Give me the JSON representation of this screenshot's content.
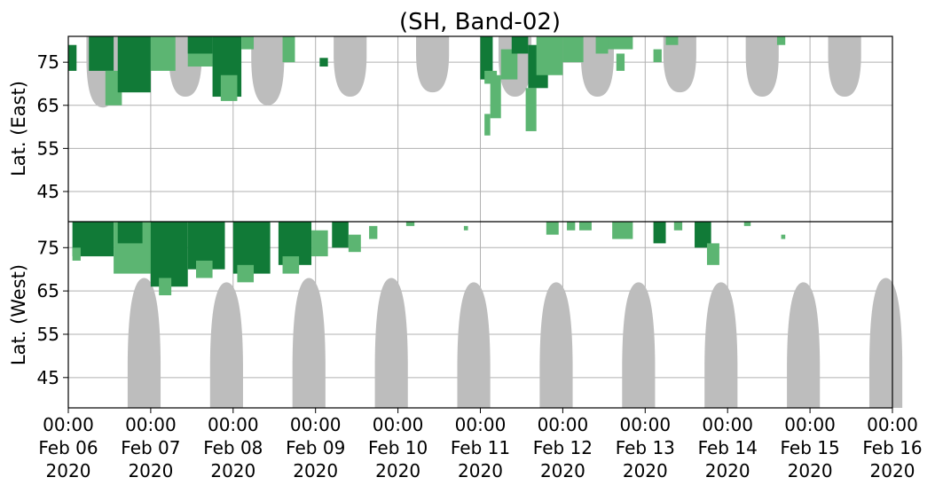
{
  "chart_data": {
    "type": "heatmap",
    "title": "(SH, Band-02)",
    "xlabel": "",
    "ylabel_top": "Lat. (East)",
    "ylabel_bottom": "Lat. (West)",
    "x_range": [
      "2020-02-06 00:00",
      "2020-02-16 00:00"
    ],
    "x_ticks": [
      {
        "time": "00:00",
        "date": "Feb 06",
        "year": "2020"
      },
      {
        "time": "00:00",
        "date": "Feb 07",
        "year": "2020"
      },
      {
        "time": "00:00",
        "date": "Feb 08",
        "year": "2020"
      },
      {
        "time": "00:00",
        "date": "Feb 09",
        "year": "2020"
      },
      {
        "time": "00:00",
        "date": "Feb 10",
        "year": "2020"
      },
      {
        "time": "00:00",
        "date": "Feb 11",
        "year": "2020"
      },
      {
        "time": "00:00",
        "date": "Feb 12",
        "year": "2020"
      },
      {
        "time": "00:00",
        "date": "Feb 13",
        "year": "2020"
      },
      {
        "time": "00:00",
        "date": "Feb 14",
        "year": "2020"
      },
      {
        "time": "00:00",
        "date": "Feb 15",
        "year": "2020"
      },
      {
        "time": "00:00",
        "date": "Feb 16",
        "year": "2020"
      }
    ],
    "top_panel": {
      "ylim": [
        38,
        81
      ],
      "ticks": [
        "45",
        "55",
        "65",
        "75"
      ]
    },
    "bottom_panel": {
      "ylim": [
        81,
        38
      ],
      "ticks": [
        "75",
        "65",
        "55",
        "45"
      ]
    },
    "grid": true,
    "colors": {
      "strong": "#117a37",
      "weak": "#5cb572",
      "no_data": "#bdbdbd"
    },
    "no_data_arcs_east": [
      {
        "center_day": 0.42,
        "half_width_days": 0.2,
        "min_lat": 64.5
      },
      {
        "center_day": 1.42,
        "half_width_days": 0.2,
        "min_lat": 67
      },
      {
        "center_day": 2.42,
        "half_width_days": 0.2,
        "min_lat": 65
      },
      {
        "center_day": 3.42,
        "half_width_days": 0.2,
        "min_lat": 67
      },
      {
        "center_day": 4.42,
        "half_width_days": 0.2,
        "min_lat": 68
      },
      {
        "center_day": 5.42,
        "half_width_days": 0.2,
        "min_lat": 67
      },
      {
        "center_day": 6.42,
        "half_width_days": 0.2,
        "min_lat": 67
      },
      {
        "center_day": 7.42,
        "half_width_days": 0.2,
        "min_lat": 68
      },
      {
        "center_day": 8.42,
        "half_width_days": 0.2,
        "min_lat": 67
      },
      {
        "center_day": 9.42,
        "half_width_days": 0.2,
        "min_lat": 67
      }
    ],
    "no_data_arcs_west": [
      {
        "center_day": 0.92,
        "half_width_days": 0.2,
        "min_lat": 68
      },
      {
        "center_day": 1.92,
        "half_width_days": 0.2,
        "min_lat": 67
      },
      {
        "center_day": 2.92,
        "half_width_days": 0.2,
        "min_lat": 68
      },
      {
        "center_day": 3.92,
        "half_width_days": 0.2,
        "min_lat": 68
      },
      {
        "center_day": 4.92,
        "half_width_days": 0.2,
        "min_lat": 67
      },
      {
        "center_day": 5.92,
        "half_width_days": 0.2,
        "min_lat": 67
      },
      {
        "center_day": 6.92,
        "half_width_days": 0.2,
        "min_lat": 67
      },
      {
        "center_day": 7.92,
        "half_width_days": 0.2,
        "min_lat": 67
      },
      {
        "center_day": 8.92,
        "half_width_days": 0.2,
        "min_lat": 67
      },
      {
        "center_day": 9.92,
        "half_width_days": 0.2,
        "min_lat": 68
      }
    ],
    "echo_patches": [
      {
        "panel": "east",
        "day_start": 0.0,
        "day_end": 0.1,
        "lat_min": 73,
        "lat_max": 79,
        "level": "strong"
      },
      {
        "panel": "east",
        "day_start": 0.25,
        "day_end": 0.55,
        "lat_min": 73,
        "lat_max": 81,
        "level": "strong"
      },
      {
        "panel": "east",
        "day_start": 0.45,
        "day_end": 0.65,
        "lat_min": 65,
        "lat_max": 73,
        "level": "weak"
      },
      {
        "panel": "east",
        "day_start": 0.6,
        "day_end": 1.0,
        "lat_min": 68,
        "lat_max": 81,
        "level": "strong"
      },
      {
        "panel": "east",
        "day_start": 1.0,
        "day_end": 1.3,
        "lat_min": 73,
        "lat_max": 81,
        "level": "weak"
      },
      {
        "panel": "east",
        "day_start": 1.45,
        "day_end": 1.75,
        "lat_min": 74,
        "lat_max": 81,
        "level": "weak"
      },
      {
        "panel": "east",
        "day_start": 1.45,
        "day_end": 1.75,
        "lat_min": 77,
        "lat_max": 81,
        "level": "strong"
      },
      {
        "panel": "east",
        "day_start": 1.75,
        "day_end": 2.1,
        "lat_min": 67,
        "lat_max": 81,
        "level": "strong"
      },
      {
        "panel": "east",
        "day_start": 1.85,
        "day_end": 2.05,
        "lat_min": 66,
        "lat_max": 72,
        "level": "weak"
      },
      {
        "panel": "east",
        "day_start": 2.1,
        "day_end": 2.25,
        "lat_min": 78,
        "lat_max": 81,
        "level": "weak"
      },
      {
        "panel": "east",
        "day_start": 2.6,
        "day_end": 2.75,
        "lat_min": 75,
        "lat_max": 81,
        "level": "weak"
      },
      {
        "panel": "east",
        "day_start": 3.05,
        "day_end": 3.15,
        "lat_min": 74,
        "lat_max": 76,
        "level": "strong"
      },
      {
        "panel": "east",
        "day_start": 5.0,
        "day_end": 5.15,
        "lat_min": 71,
        "lat_max": 81,
        "level": "strong"
      },
      {
        "panel": "east",
        "day_start": 5.05,
        "day_end": 5.2,
        "lat_min": 70,
        "lat_max": 73,
        "level": "weak"
      },
      {
        "panel": "east",
        "day_start": 5.05,
        "day_end": 5.12,
        "lat_min": 58,
        "lat_max": 63,
        "level": "weak"
      },
      {
        "panel": "east",
        "day_start": 5.12,
        "day_end": 5.25,
        "lat_min": 62,
        "lat_max": 72,
        "level": "weak"
      },
      {
        "panel": "east",
        "day_start": 5.25,
        "day_end": 5.45,
        "lat_min": 71,
        "lat_max": 78,
        "level": "weak"
      },
      {
        "panel": "east",
        "day_start": 5.38,
        "day_end": 5.58,
        "lat_min": 77,
        "lat_max": 81,
        "level": "strong"
      },
      {
        "panel": "east",
        "day_start": 5.55,
        "day_end": 5.68,
        "lat_min": 59,
        "lat_max": 69,
        "level": "weak"
      },
      {
        "panel": "east",
        "day_start": 5.58,
        "day_end": 5.82,
        "lat_min": 69,
        "lat_max": 79,
        "level": "strong"
      },
      {
        "panel": "east",
        "day_start": 5.68,
        "day_end": 6.0,
        "lat_min": 72,
        "lat_max": 81,
        "level": "weak"
      },
      {
        "panel": "east",
        "day_start": 6.0,
        "day_end": 6.25,
        "lat_min": 75,
        "lat_max": 81,
        "level": "weak"
      },
      {
        "panel": "east",
        "day_start": 6.4,
        "day_end": 6.55,
        "lat_min": 77,
        "lat_max": 81,
        "level": "weak"
      },
      {
        "panel": "east",
        "day_start": 6.65,
        "day_end": 6.75,
        "lat_min": 73,
        "lat_max": 77,
        "level": "weak"
      },
      {
        "panel": "east",
        "day_start": 6.55,
        "day_end": 6.85,
        "lat_min": 78,
        "lat_max": 81,
        "level": "weak"
      },
      {
        "panel": "east",
        "day_start": 7.1,
        "day_end": 7.2,
        "lat_min": 75,
        "lat_max": 78,
        "level": "weak"
      },
      {
        "panel": "east",
        "day_start": 7.25,
        "day_end": 7.4,
        "lat_min": 79,
        "lat_max": 81,
        "level": "weak"
      },
      {
        "panel": "east",
        "day_start": 8.6,
        "day_end": 8.7,
        "lat_min": 79,
        "lat_max": 81,
        "level": "weak"
      },
      {
        "panel": "west",
        "day_start": 0.05,
        "day_end": 0.55,
        "lat_min": 73,
        "lat_max": 81,
        "level": "strong"
      },
      {
        "panel": "west",
        "day_start": 0.05,
        "day_end": 0.15,
        "lat_min": 72,
        "lat_max": 75,
        "level": "weak"
      },
      {
        "panel": "west",
        "day_start": 0.55,
        "day_end": 1.1,
        "lat_min": 69,
        "lat_max": 81,
        "level": "weak"
      },
      {
        "panel": "west",
        "day_start": 0.6,
        "day_end": 0.9,
        "lat_min": 76,
        "lat_max": 81,
        "level": "strong"
      },
      {
        "panel": "west",
        "day_start": 1.0,
        "day_end": 1.45,
        "lat_min": 66,
        "lat_max": 81,
        "level": "strong"
      },
      {
        "panel": "west",
        "day_start": 1.1,
        "day_end": 1.25,
        "lat_min": 64,
        "lat_max": 68,
        "level": "weak"
      },
      {
        "panel": "west",
        "day_start": 1.45,
        "day_end": 1.9,
        "lat_min": 70,
        "lat_max": 81,
        "level": "strong"
      },
      {
        "panel": "west",
        "day_start": 1.55,
        "day_end": 1.75,
        "lat_min": 68,
        "lat_max": 72,
        "level": "weak"
      },
      {
        "panel": "west",
        "day_start": 2.0,
        "day_end": 2.45,
        "lat_min": 69,
        "lat_max": 81,
        "level": "strong"
      },
      {
        "panel": "west",
        "day_start": 2.05,
        "day_end": 2.25,
        "lat_min": 67,
        "lat_max": 71,
        "level": "weak"
      },
      {
        "panel": "west",
        "day_start": 2.55,
        "day_end": 2.95,
        "lat_min": 71,
        "lat_max": 81,
        "level": "strong"
      },
      {
        "panel": "west",
        "day_start": 2.6,
        "day_end": 2.8,
        "lat_min": 69,
        "lat_max": 73,
        "level": "weak"
      },
      {
        "panel": "west",
        "day_start": 2.95,
        "day_end": 3.15,
        "lat_min": 73,
        "lat_max": 79,
        "level": "weak"
      },
      {
        "panel": "west",
        "day_start": 3.2,
        "day_end": 3.4,
        "lat_min": 75,
        "lat_max": 81,
        "level": "strong"
      },
      {
        "panel": "west",
        "day_start": 3.4,
        "day_end": 3.55,
        "lat_min": 74,
        "lat_max": 78,
        "level": "weak"
      },
      {
        "panel": "west",
        "day_start": 3.65,
        "day_end": 3.75,
        "lat_min": 77,
        "lat_max": 80,
        "level": "weak"
      },
      {
        "panel": "west",
        "day_start": 4.1,
        "day_end": 4.2,
        "lat_min": 80,
        "lat_max": 81,
        "level": "weak"
      },
      {
        "panel": "west",
        "day_start": 4.8,
        "day_end": 4.85,
        "lat_min": 79,
        "lat_max": 80,
        "level": "weak"
      },
      {
        "panel": "west",
        "day_start": 5.8,
        "day_end": 5.95,
        "lat_min": 78,
        "lat_max": 81,
        "level": "weak"
      },
      {
        "panel": "west",
        "day_start": 6.05,
        "day_end": 6.15,
        "lat_min": 79,
        "lat_max": 81,
        "level": "weak"
      },
      {
        "panel": "west",
        "day_start": 6.2,
        "day_end": 6.35,
        "lat_min": 79,
        "lat_max": 81,
        "level": "weak"
      },
      {
        "panel": "west",
        "day_start": 6.6,
        "day_end": 6.85,
        "lat_min": 77,
        "lat_max": 81,
        "level": "weak"
      },
      {
        "panel": "west",
        "day_start": 7.1,
        "day_end": 7.25,
        "lat_min": 76,
        "lat_max": 81,
        "level": "strong"
      },
      {
        "panel": "west",
        "day_start": 7.35,
        "day_end": 7.45,
        "lat_min": 79,
        "lat_max": 81,
        "level": "weak"
      },
      {
        "panel": "west",
        "day_start": 7.6,
        "day_end": 7.8,
        "lat_min": 75,
        "lat_max": 81,
        "level": "strong"
      },
      {
        "panel": "west",
        "day_start": 7.75,
        "day_end": 7.9,
        "lat_min": 71,
        "lat_max": 76,
        "level": "weak"
      },
      {
        "panel": "west",
        "day_start": 8.2,
        "day_end": 8.28,
        "lat_min": 80,
        "lat_max": 81,
        "level": "weak"
      },
      {
        "panel": "west",
        "day_start": 8.65,
        "day_end": 8.7,
        "lat_min": 77,
        "lat_max": 78,
        "level": "weak"
      }
    ]
  }
}
